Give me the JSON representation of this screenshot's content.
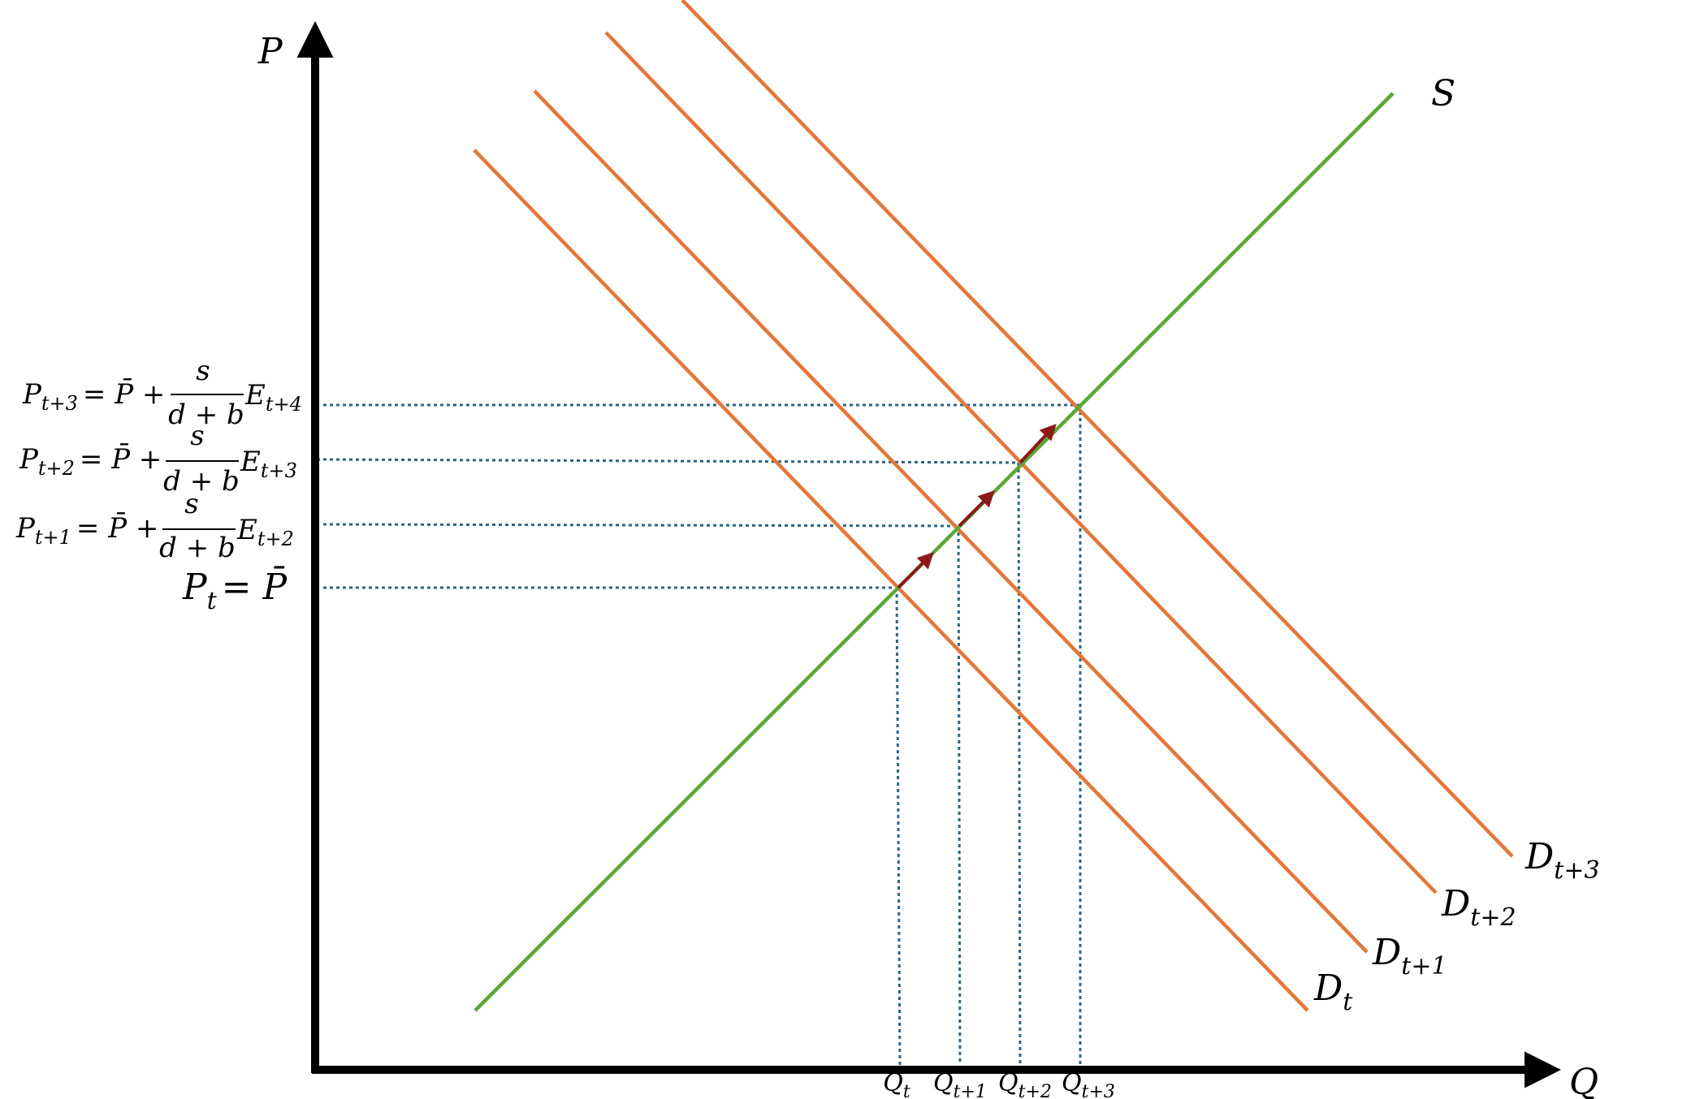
{
  "colors": {
    "axis": "#000000",
    "supply": "#5aa636",
    "demand": "#e2773a",
    "guide": "#2f6582",
    "arrow": "#8b1a1a"
  },
  "axes": {
    "y_label": "P",
    "x_label": "Q"
  },
  "supply": {
    "label": "S"
  },
  "demand": [
    {
      "main": "D",
      "sub": "t"
    },
    {
      "main": "D",
      "sub": "t+1"
    },
    {
      "main": "D",
      "sub": "t+2"
    },
    {
      "main": "D",
      "sub": "t+3"
    }
  ],
  "price_labels": [
    {
      "lhs": "P",
      "lhs_sub": "t",
      "rhs": "= P̄"
    },
    {
      "lhs": "P",
      "lhs_sub": "t+1",
      "rhs": "= P̄ +",
      "frac_num": "s",
      "frac_den": "d + b",
      "tail": "E",
      "tail_sub": "t+2"
    },
    {
      "lhs": "P",
      "lhs_sub": "t+2",
      "rhs": "= P̄ +",
      "frac_num": "s",
      "frac_den": "d + b",
      "tail": "E",
      "tail_sub": "t+3"
    },
    {
      "lhs": "P",
      "lhs_sub": "t+3",
      "rhs": "= P̄ +",
      "frac_num": "s",
      "frac_den": "d + b",
      "tail": "E",
      "tail_sub": "t+4"
    }
  ],
  "quantity_labels": [
    {
      "main": "Q",
      "sub": "t"
    },
    {
      "main": "Q",
      "sub": "t+1"
    },
    {
      "main": "Q",
      "sub": "t+2"
    },
    {
      "main": "Q",
      "sub": "t+3"
    }
  ]
}
